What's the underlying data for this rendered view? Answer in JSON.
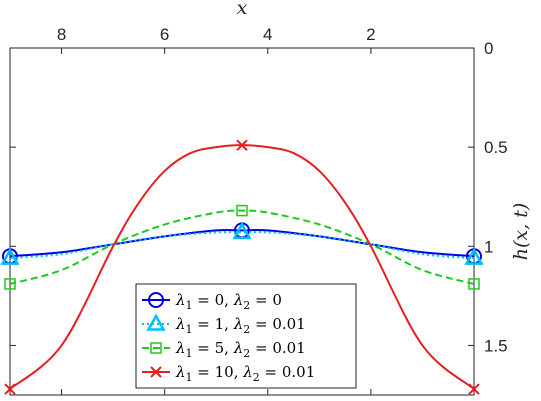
{
  "chart_data": {
    "type": "line",
    "xlabel": "x",
    "ylabel": "h(x, t)",
    "xlim": [
      0,
      9
    ],
    "ylim": [
      0,
      1.75
    ],
    "x_reversed": true,
    "y_reversed": true,
    "x_axis_location": "top",
    "y_axis_location": "right",
    "grid": false,
    "box": true,
    "legend_location": "bottom-center",
    "xticks": [
      8,
      6,
      4,
      2
    ],
    "yticks": [
      0,
      0.5,
      1,
      1.5
    ],
    "xtick_labels": [
      "8",
      "6",
      "4",
      "2"
    ],
    "ytick_labels": [
      "0",
      "0.5",
      "1",
      "1.5"
    ],
    "series": [
      {
        "name": "λ1 = 0,   λ2 = 0",
        "color": "#0000e6",
        "line": "solid",
        "marker": "circle",
        "x": [
          0,
          1,
          2,
          3,
          4,
          4.5,
          5,
          6,
          7,
          8,
          9
        ],
        "y": [
          1.05,
          1.03,
          0.99,
          0.95,
          0.92,
          0.92,
          0.92,
          0.95,
          0.99,
          1.03,
          1.05
        ],
        "marker_x": [
          0,
          4.5,
          9
        ],
        "marker_y": [
          1.05,
          0.92,
          1.05
        ]
      },
      {
        "name": "λ1 = 1,   λ2 = 0.01",
        "color": "#00bfff",
        "line": "dotted",
        "marker": "triangle",
        "x": [
          0,
          1,
          2,
          3,
          4,
          4.5,
          5,
          6,
          7,
          8,
          9
        ],
        "y": [
          1.06,
          1.04,
          0.99,
          0.95,
          0.93,
          0.93,
          0.93,
          0.95,
          0.99,
          1.04,
          1.06
        ],
        "marker_x": [
          0,
          4.5,
          9
        ],
        "marker_y": [
          1.06,
          0.93,
          1.06
        ]
      },
      {
        "name": "λ1 = 5,   λ2 = 0.01",
        "color": "#1fc81f",
        "line": "dashed",
        "marker": "square",
        "x": [
          0,
          1,
          2,
          3,
          4,
          4.5,
          5,
          6,
          7,
          8,
          9
        ],
        "y": [
          1.19,
          1.12,
          0.99,
          0.89,
          0.83,
          0.82,
          0.83,
          0.89,
          0.99,
          1.12,
          1.19
        ],
        "marker_x": [
          0,
          4.5,
          9
        ],
        "marker_y": [
          1.19,
          0.82,
          1.19
        ]
      },
      {
        "name": "λ1 = 10, λ2 = 0.01",
        "color": "#e61e1e",
        "line": "solid",
        "marker": "x",
        "x": [
          0,
          1,
          2,
          2.5,
          3,
          3.5,
          4,
          4.5,
          5,
          5.5,
          6,
          6.5,
          7,
          8,
          9
        ],
        "y": [
          1.72,
          1.5,
          1.0,
          0.78,
          0.62,
          0.53,
          0.5,
          0.49,
          0.5,
          0.53,
          0.62,
          0.78,
          1.0,
          1.5,
          1.72
        ],
        "marker_x": [
          0,
          4.5,
          9
        ],
        "marker_y": [
          1.72,
          0.49,
          1.72
        ]
      }
    ],
    "legend": [
      {
        "lam1": "λ",
        "sub1": "1",
        "val1": " = 0,   ",
        "lam2": "λ",
        "sub2": "2",
        "val2": " = 0"
      },
      {
        "lam1": "λ",
        "sub1": "1",
        "val1": " = 1,   ",
        "lam2": "λ",
        "sub2": "2",
        "val2": " = 0.01"
      },
      {
        "lam1": "λ",
        "sub1": "1",
        "val1": " = 5,   ",
        "lam2": "λ",
        "sub2": "2",
        "val2": " = 0.01"
      },
      {
        "lam1": "λ",
        "sub1": "1",
        "val1": " = 10, ",
        "lam2": "λ",
        "sub2": "2",
        "val2": " = 0.01"
      }
    ]
  }
}
